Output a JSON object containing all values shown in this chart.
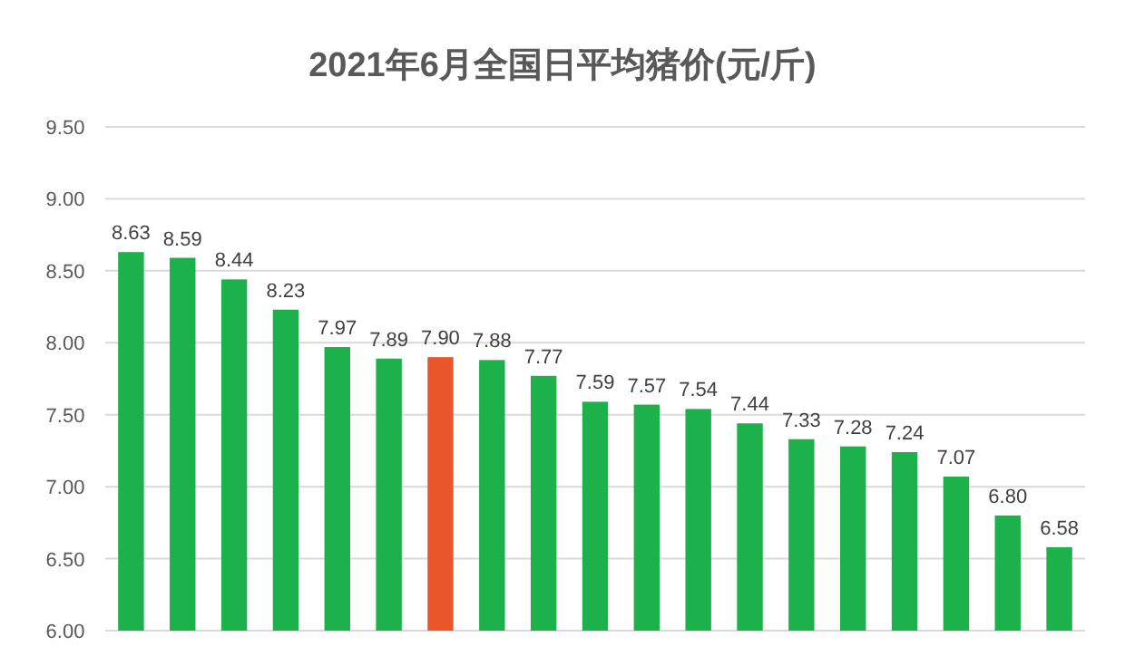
{
  "chart_data": {
    "type": "bar",
    "title": "2021年6月全国日平均猪价(元/斤)",
    "categories": [
      null,
      null,
      null,
      null,
      null,
      null,
      null,
      null,
      null,
      null,
      null,
      null,
      null,
      null,
      null,
      null,
      null,
      null,
      null
    ],
    "values": [
      8.63,
      8.59,
      8.44,
      8.23,
      7.97,
      7.89,
      7.9,
      7.88,
      7.77,
      7.59,
      7.57,
      7.54,
      7.44,
      7.33,
      7.28,
      7.24,
      7.07,
      6.8,
      6.58
    ],
    "value_labels": [
      "8.63",
      "8.59",
      "8.44",
      "8.23",
      "7.97",
      "7.89",
      "7.90",
      "7.88",
      "7.77",
      "7.59",
      "7.57",
      "7.54",
      "7.44",
      "7.33",
      "7.28",
      "7.24",
      "7.07",
      "6.80",
      "6.58"
    ],
    "colors": [
      "#1db14b",
      "#1db14b",
      "#1db14b",
      "#1db14b",
      "#1db14b",
      "#1db14b",
      "#e8562a",
      "#1db14b",
      "#1db14b",
      "#1db14b",
      "#1db14b",
      "#1db14b",
      "#1db14b",
      "#1db14b",
      "#1db14b",
      "#1db14b",
      "#1db14b",
      "#1db14b",
      "#1db14b"
    ],
    "ylim": [
      6,
      9.5
    ],
    "yticks": [
      {
        "value": 6,
        "label": "6.00"
      },
      {
        "value": 6.5,
        "label": "6.50"
      },
      {
        "value": 7,
        "label": "7.00"
      },
      {
        "value": 7.5,
        "label": "7.50"
      },
      {
        "value": 8,
        "label": "8.00"
      },
      {
        "value": 8.5,
        "label": "8.50"
      },
      {
        "value": 9,
        "label": "9.00"
      },
      {
        "value": 9.5,
        "label": "9.50"
      }
    ],
    "grid": "y"
  }
}
